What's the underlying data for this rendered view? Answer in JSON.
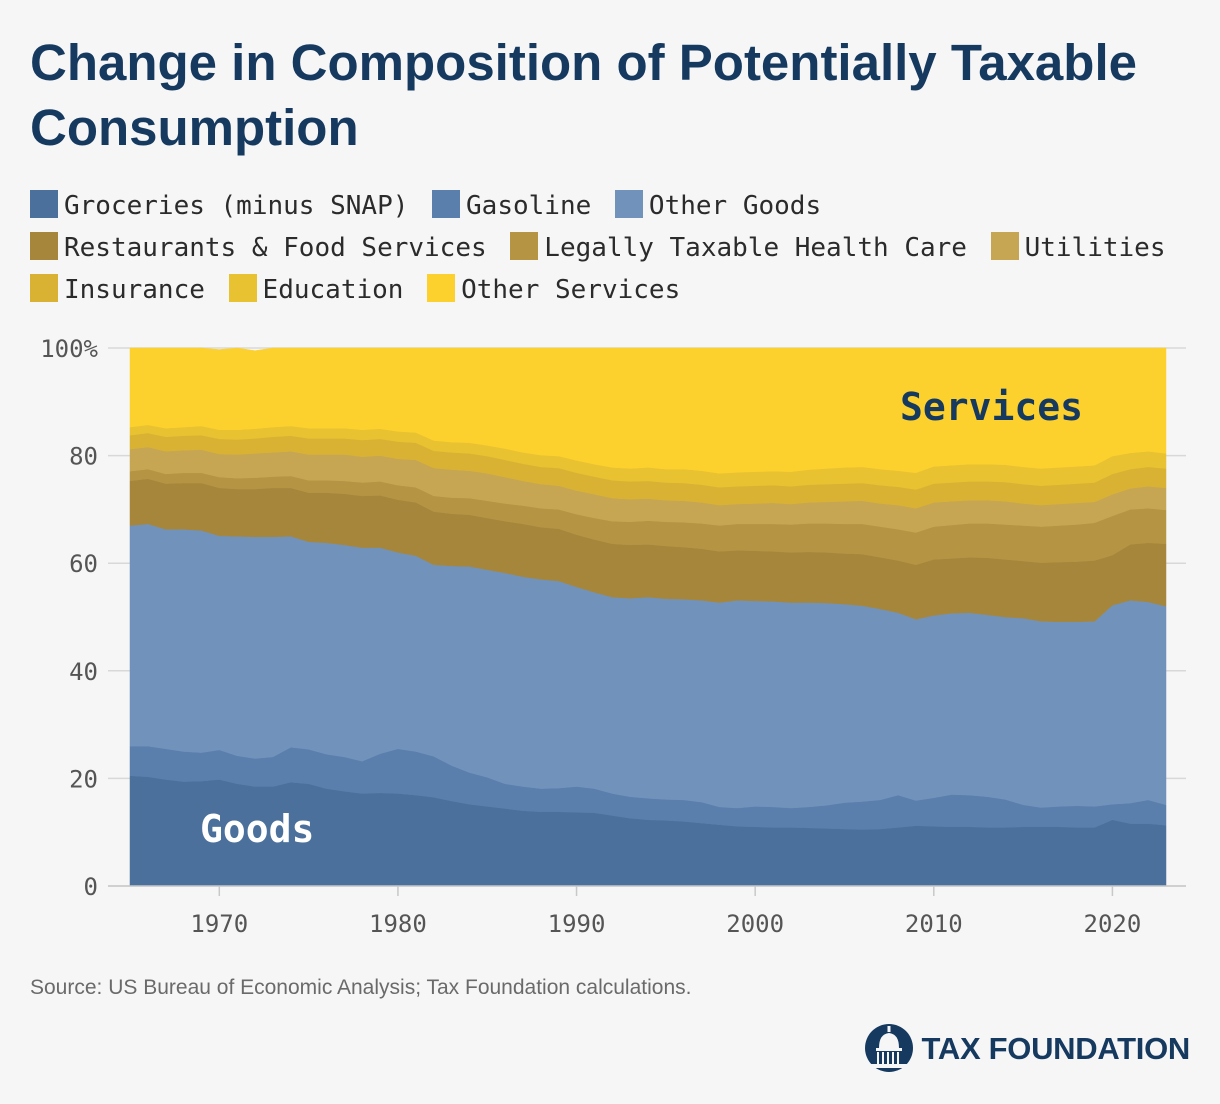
{
  "title": "Change in Composition of Potentially Taxable Consumption",
  "source": "Source: US Bureau of Economic Analysis; Tax Foundation calculations.",
  "brand": {
    "name": "TAX FOUNDATION"
  },
  "chart_data": {
    "type": "area",
    "stacked": true,
    "x": [
      1965,
      1966,
      1967,
      1968,
      1969,
      1970,
      1971,
      1972,
      1973,
      1974,
      1975,
      1976,
      1977,
      1978,
      1979,
      1980,
      1981,
      1982,
      1983,
      1984,
      1985,
      1986,
      1987,
      1988,
      1989,
      1990,
      1991,
      1992,
      1993,
      1994,
      1995,
      1996,
      1997,
      1998,
      1999,
      2000,
      2001,
      2002,
      2003,
      2004,
      2005,
      2006,
      2007,
      2008,
      2009,
      2010,
      2011,
      2012,
      2013,
      2014,
      2015,
      2016,
      2017,
      2018,
      2019,
      2020,
      2021,
      2022,
      2023
    ],
    "ylim": [
      0,
      100
    ],
    "yticks": [
      "0",
      "20",
      "40",
      "60",
      "80",
      "100%"
    ],
    "xticks": [
      "1970",
      "1980",
      "1990",
      "2000",
      "2010",
      "2020"
    ],
    "grid": true,
    "legend_position": "top",
    "annotations": {
      "goods": "Goods",
      "services": "Services"
    },
    "series": [
      {
        "name": "Groceries (minus SNAP)",
        "color": "#4a709b",
        "values": [
          20.5,
          20.3,
          19.8,
          19.4,
          19.5,
          19.8,
          19.0,
          18.5,
          18.5,
          19.3,
          19.0,
          18.1,
          17.6,
          17.2,
          17.3,
          17.2,
          16.9,
          16.5,
          15.8,
          15.2,
          14.8,
          14.4,
          14.0,
          13.8,
          13.8,
          13.7,
          13.6,
          13.1,
          12.6,
          12.3,
          12.2,
          12.0,
          11.7,
          11.4,
          11.1,
          11.0,
          10.9,
          10.9,
          10.8,
          10.7,
          10.6,
          10.5,
          10.6,
          10.9,
          11.2,
          11.1,
          11.0,
          11.0,
          10.9,
          10.9,
          11.0,
          11.0,
          11.0,
          10.9,
          10.9,
          12.3,
          11.6,
          11.6,
          11.3
        ]
      },
      {
        "name": "Gasoline",
        "color": "#5a7fac",
        "values": [
          5.5,
          5.7,
          5.7,
          5.6,
          5.3,
          5.5,
          5.2,
          5.2,
          5.5,
          6.5,
          6.4,
          6.4,
          6.4,
          6.0,
          7.3,
          8.3,
          8.1,
          7.6,
          6.6,
          5.9,
          5.4,
          4.6,
          4.5,
          4.3,
          4.4,
          4.8,
          4.5,
          4.1,
          4.0,
          4.0,
          3.9,
          4.0,
          3.9,
          3.3,
          3.4,
          3.8,
          3.8,
          3.6,
          3.9,
          4.3,
          4.9,
          5.2,
          5.4,
          6.0,
          4.7,
          5.3,
          6.0,
          5.9,
          5.7,
          5.2,
          4.1,
          3.6,
          3.8,
          4.0,
          3.9,
          2.9,
          3.8,
          4.4,
          3.8
        ]
      },
      {
        "name": "Other Goods",
        "color": "#7192ba",
        "values": [
          41.0,
          41.3,
          40.8,
          41.3,
          41.3,
          39.8,
          40.8,
          41.2,
          40.9,
          39.2,
          38.6,
          39.3,
          39.4,
          39.7,
          38.3,
          36.5,
          36.4,
          35.6,
          37.1,
          38.3,
          38.6,
          39.2,
          39.0,
          38.9,
          38.5,
          37.1,
          36.5,
          36.5,
          36.9,
          37.4,
          37.3,
          37.3,
          37.5,
          38.0,
          38.6,
          38.2,
          38.2,
          38.2,
          38.0,
          37.6,
          36.9,
          36.4,
          35.5,
          33.9,
          33.7,
          33.9,
          33.7,
          33.9,
          33.8,
          33.9,
          34.7,
          34.6,
          34.3,
          34.2,
          34.4,
          37.0,
          37.7,
          36.8,
          36.9
        ]
      },
      {
        "name": "Restaurants & Food Services",
        "color": "#a6863b",
        "values": [
          8.3,
          8.4,
          8.5,
          8.6,
          8.8,
          8.9,
          8.8,
          8.9,
          9.1,
          9.0,
          9.1,
          9.3,
          9.5,
          9.6,
          9.7,
          9.8,
          9.9,
          9.9,
          9.7,
          9.6,
          9.6,
          9.6,
          9.8,
          9.7,
          9.7,
          9.7,
          9.8,
          9.9,
          9.9,
          9.8,
          9.8,
          9.7,
          9.6,
          9.5,
          9.3,
          9.3,
          9.3,
          9.3,
          9.4,
          9.4,
          9.4,
          9.6,
          9.6,
          9.7,
          10.1,
          10.4,
          10.2,
          10.3,
          10.6,
          10.7,
          10.6,
          10.9,
          11.1,
          11.2,
          11.3,
          9.3,
          10.4,
          11.0,
          11.6
        ]
      },
      {
        "name": "Legally Taxable Health Care",
        "color": "#b59443",
        "values": [
          1.8,
          1.8,
          1.8,
          1.9,
          1.9,
          2.0,
          2.0,
          2.1,
          2.1,
          2.2,
          2.3,
          2.3,
          2.4,
          2.5,
          2.6,
          2.7,
          2.8,
          2.9,
          3.0,
          3.1,
          3.2,
          3.3,
          3.4,
          3.5,
          3.6,
          3.8,
          4.0,
          4.2,
          4.3,
          4.4,
          4.5,
          4.6,
          4.7,
          4.8,
          4.9,
          5.0,
          5.1,
          5.2,
          5.3,
          5.4,
          5.5,
          5.6,
          5.7,
          5.8,
          6.0,
          6.1,
          6.2,
          6.3,
          6.4,
          6.5,
          6.6,
          6.7,
          6.8,
          6.9,
          7.0,
          7.3,
          6.5,
          6.4,
          6.3
        ]
      },
      {
        "name": "Utilities",
        "color": "#c6a652",
        "values": [
          4.1,
          4.1,
          4.2,
          4.2,
          4.3,
          4.3,
          4.4,
          4.5,
          4.5,
          4.6,
          4.8,
          4.8,
          4.9,
          4.8,
          4.8,
          4.9,
          5.1,
          5.2,
          5.2,
          5.1,
          5.1,
          4.9,
          4.6,
          4.5,
          4.4,
          4.4,
          4.4,
          4.3,
          4.2,
          4.1,
          4.0,
          4.0,
          3.9,
          3.8,
          3.7,
          3.8,
          3.9,
          3.8,
          3.9,
          4.0,
          4.2,
          4.3,
          4.3,
          4.5,
          4.5,
          4.5,
          4.4,
          4.3,
          4.3,
          4.3,
          4.1,
          4.0,
          4.0,
          4.0,
          3.9,
          4.0,
          3.9,
          4.1,
          4.1
        ]
      },
      {
        "name": "Insurance",
        "color": "#d9b234",
        "values": [
          2.6,
          2.6,
          2.7,
          2.7,
          2.7,
          2.8,
          2.8,
          2.8,
          2.9,
          2.9,
          3.0,
          3.0,
          3.0,
          3.1,
          3.1,
          3.2,
          3.2,
          3.2,
          3.2,
          3.2,
          3.2,
          3.2,
          3.2,
          3.2,
          3.3,
          3.3,
          3.3,
          3.3,
          3.3,
          3.3,
          3.3,
          3.3,
          3.3,
          3.3,
          3.3,
          3.3,
          3.3,
          3.3,
          3.3,
          3.3,
          3.3,
          3.3,
          3.4,
          3.4,
          3.5,
          3.5,
          3.5,
          3.5,
          3.5,
          3.6,
          3.6,
          3.6,
          3.6,
          3.6,
          3.6,
          3.8,
          3.6,
          3.6,
          3.6
        ]
      },
      {
        "name": "Education",
        "color": "#e8c230",
        "values": [
          1.5,
          1.5,
          1.6,
          1.6,
          1.7,
          1.7,
          1.8,
          1.8,
          1.8,
          1.8,
          1.9,
          1.9,
          1.9,
          1.9,
          1.9,
          1.9,
          1.9,
          1.9,
          1.9,
          2.0,
          2.0,
          2.1,
          2.1,
          2.2,
          2.2,
          2.3,
          2.3,
          2.4,
          2.4,
          2.5,
          2.5,
          2.6,
          2.6,
          2.6,
          2.6,
          2.6,
          2.6,
          2.7,
          2.8,
          2.9,
          3.0,
          3.0,
          3.0,
          3.0,
          3.1,
          3.2,
          3.2,
          3.2,
          3.2,
          3.2,
          3.2,
          3.2,
          3.2,
          3.2,
          3.2,
          3.3,
          3.0,
          2.9,
          2.8
        ]
      },
      {
        "name": "Other Services",
        "color": "#fcd12e",
        "values": [
          14.7,
          14.3,
          14.9,
          14.7,
          14.5,
          14.9,
          15.2,
          14.5,
          14.7,
          14.5,
          14.9,
          14.9,
          14.9,
          15.2,
          15.0,
          15.5,
          15.7,
          17.2,
          17.5,
          17.6,
          18.1,
          18.7,
          19.4,
          19.9,
          20.1,
          20.9,
          21.6,
          22.2,
          22.4,
          22.2,
          22.5,
          22.5,
          22.8,
          23.3,
          23.1,
          23.0,
          22.9,
          23.0,
          22.6,
          22.4,
          22.2,
          22.1,
          22.5,
          22.8,
          23.2,
          22.0,
          21.8,
          21.6,
          21.6,
          21.7,
          22.1,
          22.4,
          22.2,
          22.0,
          21.8,
          20.1,
          19.5,
          19.2,
          19.6
        ]
      }
    ]
  }
}
